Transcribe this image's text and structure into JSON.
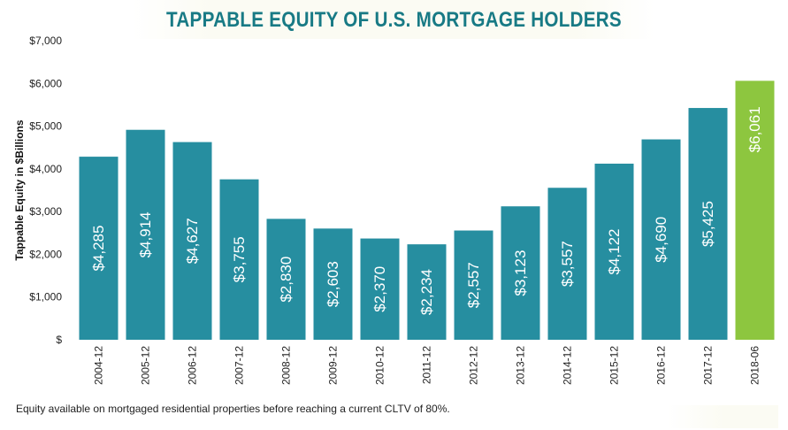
{
  "chart_data": {
    "type": "bar",
    "title": "TAPPABLE EQUITY OF U.S. MORTGAGE HOLDERS",
    "ylabel": "Tappable Equity in $Billions",
    "xlabel": "",
    "ylim": [
      0,
      7000
    ],
    "yticks": [
      0,
      1000,
      2000,
      3000,
      4000,
      5000,
      6000,
      7000
    ],
    "ytick_labels": [
      "$",
      "$1,000",
      "$2,000",
      "$3,000",
      "$4,000",
      "$5,000",
      "$6,000",
      "$7,000"
    ],
    "categories": [
      "2004-12",
      "2005-12",
      "2006-12",
      "2007-12",
      "2008-12",
      "2009-12",
      "2010-12",
      "2011-12",
      "2012-12",
      "2013-12",
      "2014-12",
      "2015-12",
      "2016-12",
      "2017-12",
      "2018-06"
    ],
    "values": [
      4285,
      4914,
      4627,
      3755,
      2830,
      2603,
      2370,
      2234,
      2557,
      3123,
      3557,
      4122,
      4690,
      5425,
      6061
    ],
    "value_labels": [
      "$4,285",
      "$4,914",
      "$4,627",
      "$3,755",
      "$2,830",
      "$2,603",
      "$2,370",
      "$2,234",
      "$2,557",
      "$3,123",
      "$3,557",
      "$4,122",
      "$4,690",
      "$5,425",
      "$6,061"
    ],
    "bar_color": "#268ea0",
    "highlight_color": "#8dc63f",
    "highlight_index": 14,
    "grid": false,
    "legend": "none"
  },
  "footnote": "Equity available on mortgaged residential properties before reaching a current CLTV of 80%."
}
